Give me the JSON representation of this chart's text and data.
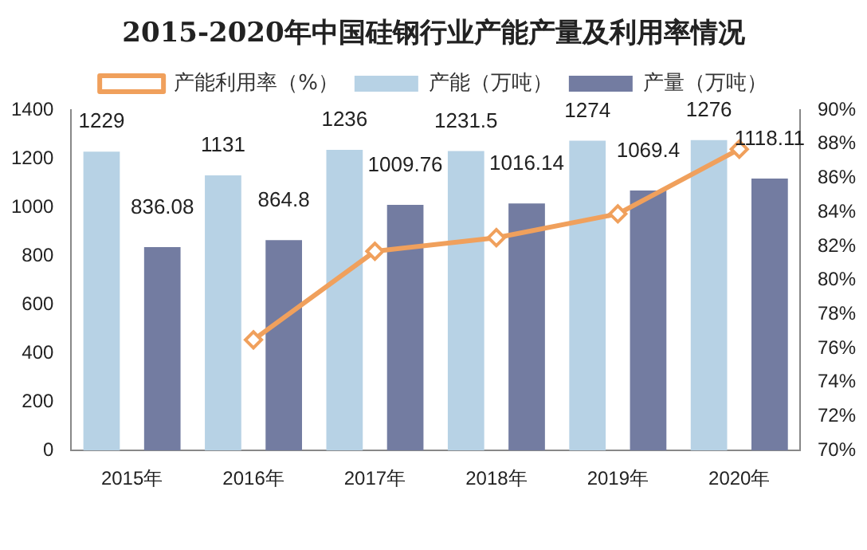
{
  "chart_data": {
    "type": "bar",
    "title": "2015-2020年中国硅钢行业产能产量及利用率情况",
    "categories": [
      "2015年",
      "2016年",
      "2017年",
      "2018年",
      "2019年",
      "2020年"
    ],
    "series": [
      {
        "name": "产能（万吨）",
        "color": "#b7d2e5",
        "values": [
          1229,
          1131,
          1236,
          1231.5,
          1274,
          1276
        ],
        "value_labels": [
          "1229",
          "1131",
          "1236",
          "1231.5",
          "1274",
          "1276"
        ]
      },
      {
        "name": "产量（万吨）",
        "color": "#737ca1",
        "values": [
          836.08,
          864.8,
          1009.76,
          1016.14,
          1069.4,
          1118.11
        ],
        "value_labels": [
          "836.08",
          "864.8",
          "1009.76",
          "1016.14",
          "1069.4",
          "1118.11"
        ]
      },
      {
        "name": "产能利用率（%）",
        "color": "#f0a05c",
        "type": "line",
        "axis": "y2",
        "marker": "diamond",
        "values": [
          null,
          76.5,
          81.7,
          82.5,
          83.9,
          87.7
        ]
      }
    ],
    "ylim": [
      0,
      1400
    ],
    "yticks": [
      0,
      200,
      400,
      600,
      800,
      1000,
      1200,
      1400
    ],
    "y2lim": [
      70,
      90
    ],
    "y2ticks": [
      {
        "value": 70,
        "label": "70%"
      },
      {
        "value": 72,
        "label": "72%"
      },
      {
        "value": 74,
        "label": "74%"
      },
      {
        "value": 76,
        "label": "76%"
      },
      {
        "value": 78,
        "label": "78%"
      },
      {
        "value": 80,
        "label": "80%"
      },
      {
        "value": 82,
        "label": "82%"
      },
      {
        "value": 84,
        "label": "84%"
      },
      {
        "value": 86,
        "label": "86%"
      },
      {
        "value": 88,
        "label": "88%"
      },
      {
        "value": 90,
        "label": "90%"
      }
    ],
    "grid": false,
    "legend": "top"
  }
}
